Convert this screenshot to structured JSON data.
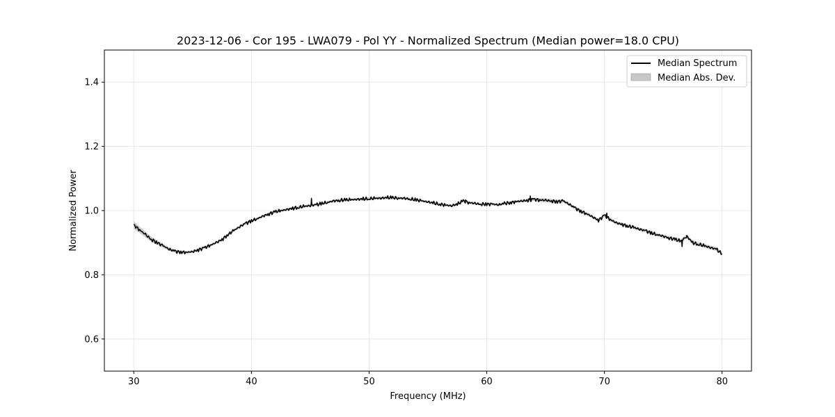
{
  "chart_data": {
    "type": "line",
    "title": "2023-12-06 - Cor 195 - LWA079 - Pol YY - Normalized Spectrum (Median power=18.0 CPU)",
    "xlabel": "Frequency (MHz)",
    "ylabel": "Normalized Power",
    "xlim": [
      27.5,
      82.5
    ],
    "ylim": [
      0.5,
      1.5
    ],
    "xticks": [
      30,
      40,
      50,
      60,
      70,
      80
    ],
    "yticks": [
      0.6,
      0.8,
      1.0,
      1.2,
      1.4
    ],
    "xtick_labels": [
      "30",
      "40",
      "50",
      "60",
      "70",
      "80"
    ],
    "ytick_labels": [
      "0.6",
      "0.8",
      "1.0",
      "1.2",
      "1.4"
    ],
    "grid": true,
    "legend_position": "top-right",
    "series": [
      {
        "name": "Median Spectrum",
        "color": "#000000",
        "x": [
          30,
          30.5,
          31,
          31.5,
          32,
          32.5,
          33,
          33.5,
          34,
          34.5,
          35,
          35.5,
          36,
          36.5,
          37,
          37.5,
          38,
          38.5,
          39,
          39.5,
          40,
          40.5,
          41,
          41.5,
          42,
          42.5,
          43,
          43.5,
          44,
          44.5,
          45,
          45.5,
          46,
          46.5,
          47,
          47.5,
          48,
          48.5,
          49,
          49.5,
          50,
          50.5,
          51,
          51.5,
          52,
          52.5,
          53,
          53.5,
          54,
          54.5,
          55,
          55.5,
          56,
          56.5,
          57,
          57.5,
          58,
          58.5,
          59,
          59.5,
          60,
          60.5,
          61,
          61.5,
          62,
          62.5,
          63,
          63.5,
          64,
          64.5,
          65,
          65.5,
          66,
          66.5,
          67,
          67.5,
          68,
          68.5,
          69,
          69.5,
          70,
          70.5,
          71,
          71.5,
          72,
          72.5,
          73,
          73.5,
          74,
          74.5,
          75,
          75.5,
          76,
          76.5,
          77,
          77.5,
          78,
          78.5,
          79,
          79.5,
          80
        ],
        "values": [
          0.955,
          0.94,
          0.925,
          0.91,
          0.9,
          0.89,
          0.88,
          0.873,
          0.871,
          0.87,
          0.872,
          0.878,
          0.884,
          0.892,
          0.9,
          0.91,
          0.925,
          0.938,
          0.95,
          0.96,
          0.968,
          0.975,
          0.983,
          0.99,
          0.996,
          1.0,
          1.003,
          1.007,
          1.01,
          1.013,
          1.016,
          1.018,
          1.022,
          1.026,
          1.03,
          1.032,
          1.033,
          1.034,
          1.035,
          1.036,
          1.037,
          1.038,
          1.039,
          1.04,
          1.04,
          1.039,
          1.038,
          1.036,
          1.033,
          1.03,
          1.027,
          1.023,
          1.02,
          1.017,
          1.015,
          1.02,
          1.03,
          1.025,
          1.022,
          1.02,
          1.02,
          1.02,
          1.018,
          1.022,
          1.025,
          1.028,
          1.03,
          1.032,
          1.035,
          1.033,
          1.032,
          1.03,
          1.028,
          1.03,
          1.02,
          1.008,
          0.998,
          0.99,
          0.98,
          0.97,
          0.985,
          0.972,
          0.962,
          0.957,
          0.952,
          0.947,
          0.942,
          0.937,
          0.93,
          0.925,
          0.92,
          0.915,
          0.91,
          0.905,
          0.92,
          0.9,
          0.895,
          0.89,
          0.885,
          0.88,
          0.865
        ],
        "spikes": [
          {
            "x": 45.1,
            "value": 1.038
          },
          {
            "x": 58.2,
            "value": 1.033
          },
          {
            "x": 63.7,
            "value": 1.045
          },
          {
            "x": 70.2,
            "value": 0.992
          },
          {
            "x": 76.6,
            "value": 0.888
          },
          {
            "x": 77.0,
            "value": 0.922
          }
        ]
      },
      {
        "name": "Median Abs. Dev.",
        "color": "#c8c8c8",
        "band_offset": [
          0.012,
          0.01,
          0.009,
          0.008,
          0.007,
          0.006,
          0.005,
          0.004,
          0.004,
          0.004,
          0.004,
          0.004,
          0.004,
          0.004,
          0.004,
          0.004,
          0.004,
          0.004,
          0.004,
          0.004,
          0.004,
          0.004,
          0.004,
          0.004,
          0.004,
          0.004,
          0.004,
          0.004,
          0.004,
          0.004,
          0.004,
          0.004,
          0.004,
          0.004,
          0.004,
          0.004,
          0.004,
          0.004,
          0.004,
          0.004,
          0.004,
          0.004,
          0.004,
          0.004,
          0.004,
          0.004,
          0.004,
          0.004,
          0.004,
          0.004,
          0.004,
          0.004,
          0.004,
          0.004,
          0.004,
          0.004,
          0.004,
          0.004,
          0.004,
          0.004,
          0.004,
          0.004,
          0.004,
          0.004,
          0.004,
          0.004,
          0.004,
          0.005,
          0.005,
          0.006,
          0.006,
          0.006,
          0.006,
          0.005,
          0.005,
          0.005,
          0.005,
          0.005,
          0.005,
          0.005,
          0.005,
          0.005,
          0.005,
          0.005,
          0.005,
          0.005,
          0.005,
          0.005,
          0.005,
          0.005,
          0.005,
          0.005,
          0.006,
          0.006,
          0.006,
          0.006,
          0.006,
          0.006,
          0.006,
          0.006,
          0.006
        ]
      }
    ]
  }
}
